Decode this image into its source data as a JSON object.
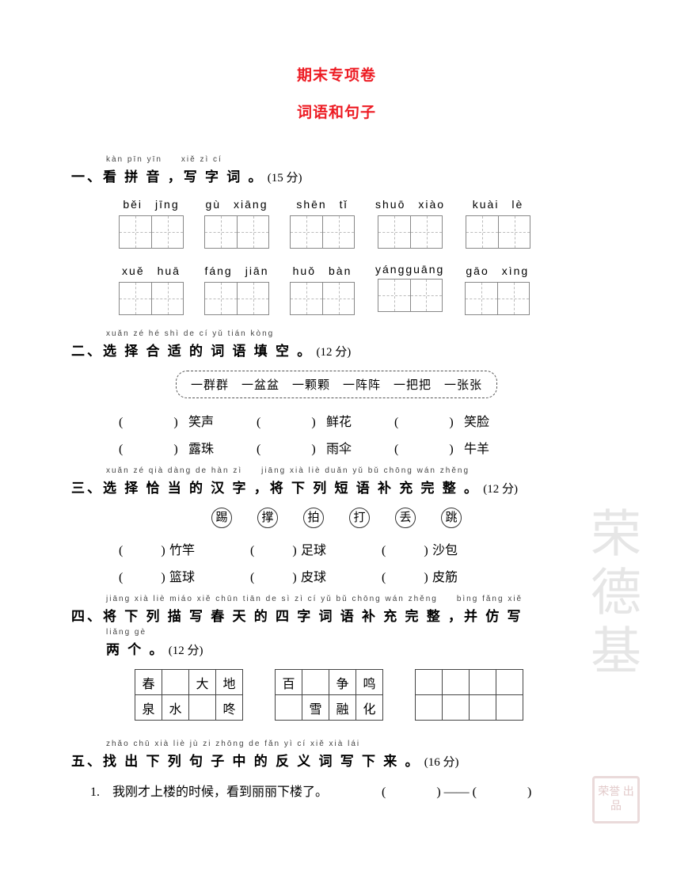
{
  "title": "期末专项卷",
  "subtitle": "词语和句子",
  "sec1": {
    "pinyin_line": "kàn pīn yīn　　xiě zì cí",
    "heading": "一、看 拼 音 ，写 字 词 。",
    "points": "(15 分)",
    "row1": [
      "běi　jīng",
      "gù　xiāng",
      "shēn　tǐ",
      "shuō　xiào",
      "kuài　lè"
    ],
    "row2": [
      "xuě　huā",
      "fáng　jiān",
      "huǒ　bàn",
      "yángguāng",
      "gāo　xìng"
    ]
  },
  "sec2": {
    "pinyin_line": "xuǎn zé hé shì de cí yǔ tián kòng",
    "heading": "二、选 择 合 适 的 词 语 填 空 。",
    "points": "(12 分)",
    "options": "一群群　一盆盆　一颗颗　一阵阵　一把把　一张张",
    "items": [
      [
        "笑声",
        "鲜花",
        "笑脸"
      ],
      [
        "露珠",
        "雨伞",
        "牛羊"
      ]
    ]
  },
  "sec3": {
    "pinyin_line": "xuǎn zé qià dàng de hàn zì　　jiāng xià liè duǎn yǔ bǔ chōng wán zhěng",
    "heading": "三、选 择 恰 当 的 汉 字 ，将 下 列 短 语 补 充 完 整 。",
    "points": "(12 分)",
    "circles": [
      "踢",
      "撑",
      "拍",
      "打",
      "丢",
      "跳"
    ],
    "items": [
      [
        "竹竿",
        "足球",
        "沙包"
      ],
      [
        "篮球",
        "皮球",
        "皮筋"
      ]
    ]
  },
  "sec4": {
    "pinyin_line1": "jiāng xià liè miáo xiě chūn tiān de sì zì cí yǔ bǔ chōng wán zhěng　　bìng fǎng xiě",
    "heading1": "四、将 下 列 描 写 春 天 的 四 字 词 语 补 充 完 整 ，并 仿 写",
    "pinyin_line2": "liǎng gè",
    "heading2": "两 个 。",
    "points": "(12 分)",
    "grid1": [
      [
        "春",
        "",
        "大",
        "地"
      ],
      [
        "泉",
        "水",
        "",
        "咚"
      ]
    ],
    "grid2": [
      [
        "百",
        "",
        "争",
        "鸣"
      ],
      [
        "",
        "雪",
        "融",
        "化"
      ]
    ],
    "grid3": [
      [
        "",
        "",
        "",
        ""
      ],
      [
        "",
        "",
        "",
        ""
      ]
    ]
  },
  "sec5": {
    "pinyin_line": "zhǎo chū xià liè jù zi zhōng de fǎn yì cí xiě xià lái",
    "heading": "五、找 出 下 列 句 子 中 的 反 义 词 写 下 来 。",
    "points": "(16 分)",
    "q1": "1.　我刚才上楼的时候，看到丽丽下楼了。",
    "q1_tail": "(　　　　) —— (　　　　)"
  },
  "watermark": "荣德基",
  "stamp": "荣誉\n出品"
}
